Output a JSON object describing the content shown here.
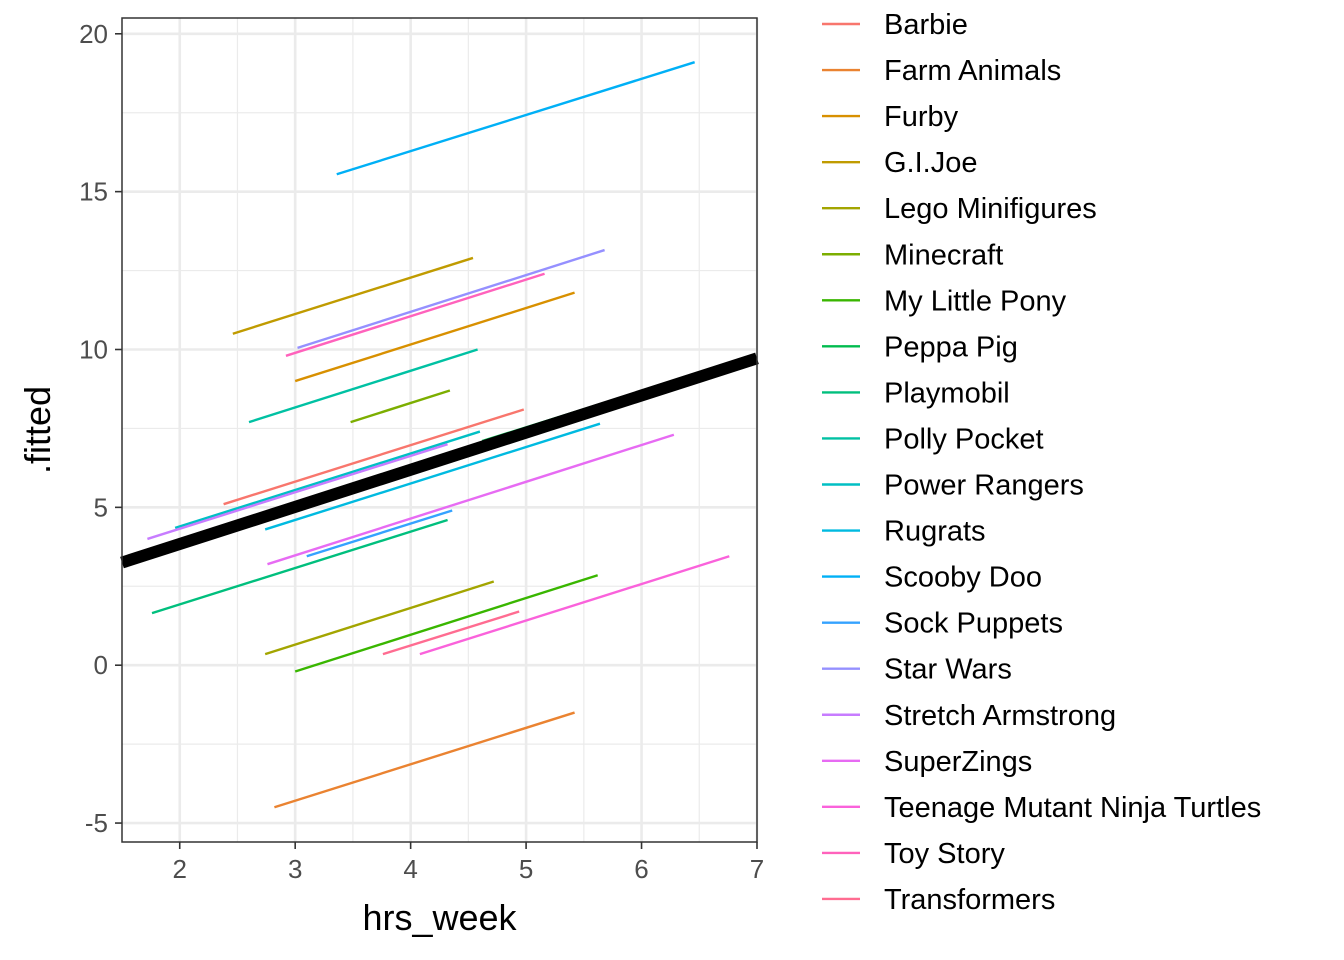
{
  "chart_data": {
    "type": "line",
    "xlabel": "hrs_week",
    "ylabel": ".fitted",
    "xlim": [
      1.5,
      7.0
    ],
    "ylim": [
      -5.6,
      20.5
    ],
    "xticks": [
      "2",
      "3",
      "4",
      "5",
      "6",
      "7"
    ],
    "yticks": [
      "-5",
      "0",
      "5",
      "10",
      "15",
      "20"
    ],
    "grid": true,
    "legend_position": "right",
    "series": [
      {
        "name": "Barbie",
        "color": "#F8766D",
        "x": [
          2.38,
          4.98
        ],
        "y": [
          5.1,
          8.1
        ]
      },
      {
        "name": "Farm Animals",
        "color": "#EA8331",
        "x": [
          2.82,
          5.42
        ],
        "y": [
          -4.5,
          -1.5
        ]
      },
      {
        "name": "Furby",
        "color": "#D89000",
        "x": [
          3.0,
          5.42
        ],
        "y": [
          9.0,
          11.8
        ]
      },
      {
        "name": "G.I.Joe",
        "color": "#C09B00",
        "x": [
          2.46,
          4.54
        ],
        "y": [
          10.5,
          12.9
        ]
      },
      {
        "name": "Lego Minifigures",
        "color": "#A3A500",
        "x": [
          2.74,
          4.72
        ],
        "y": [
          0.35,
          2.65
        ]
      },
      {
        "name": "Minecraft",
        "color": "#7CAE00",
        "x": [
          3.48,
          4.34
        ],
        "y": [
          7.7,
          8.7
        ]
      },
      {
        "name": "My Little Pony",
        "color": "#39B600",
        "x": [
          3.0,
          5.62
        ],
        "y": [
          -0.2,
          2.85
        ]
      },
      {
        "name": "Peppa Pig",
        "color": "#00BB4E",
        "x": [
          4.62,
          6.06
        ],
        "y": [
          7.1,
          8.75
        ]
      },
      {
        "name": "Playmobil",
        "color": "#00BF7D",
        "x": [
          1.76,
          4.32
        ],
        "y": [
          1.65,
          4.6
        ]
      },
      {
        "name": "Polly Pocket",
        "color": "#00C1A3",
        "x": [
          2.6,
          4.58
        ],
        "y": [
          7.7,
          10.0
        ]
      },
      {
        "name": "Power Rangers",
        "color": "#00BFC4",
        "x": [
          1.96,
          4.6
        ],
        "y": [
          4.35,
          7.4
        ]
      },
      {
        "name": "Rugrats",
        "color": "#00BAE0",
        "x": [
          2.74,
          5.64
        ],
        "y": [
          4.3,
          7.65
        ]
      },
      {
        "name": "Scooby Doo",
        "color": "#00B0F6",
        "x": [
          3.36,
          6.46
        ],
        "y": [
          15.55,
          19.1
        ]
      },
      {
        "name": "Sock Puppets",
        "color": "#35A2FF",
        "x": [
          3.1,
          4.36
        ],
        "y": [
          3.45,
          4.9
        ]
      },
      {
        "name": "Star Wars",
        "color": "#9590FF",
        "x": [
          3.02,
          5.68
        ],
        "y": [
          10.05,
          13.15
        ]
      },
      {
        "name": "Stretch Armstrong",
        "color": "#C77CFF",
        "x": [
          1.72,
          4.32
        ],
        "y": [
          4.0,
          7.0
        ]
      },
      {
        "name": "SuperZings",
        "color": "#E76BF3",
        "x": [
          2.76,
          6.28
        ],
        "y": [
          3.2,
          7.3
        ]
      },
      {
        "name": "Teenage Mutant Ninja Turtles",
        "color": "#FA62DB",
        "x": [
          4.08,
          6.76
        ],
        "y": [
          0.35,
          3.45
        ]
      },
      {
        "name": "Toy Story",
        "color": "#FF62BC",
        "x": [
          2.92,
          5.16
        ],
        "y": [
          9.8,
          12.4
        ]
      },
      {
        "name": "Transformers",
        "color": "#FF6C91",
        "x": [
          3.76,
          4.94
        ],
        "y": [
          0.35,
          1.7
        ]
      }
    ],
    "overall_fit": {
      "color": "#000000",
      "x": [
        1.5,
        7.0
      ],
      "y": [
        3.25,
        9.72
      ]
    }
  }
}
